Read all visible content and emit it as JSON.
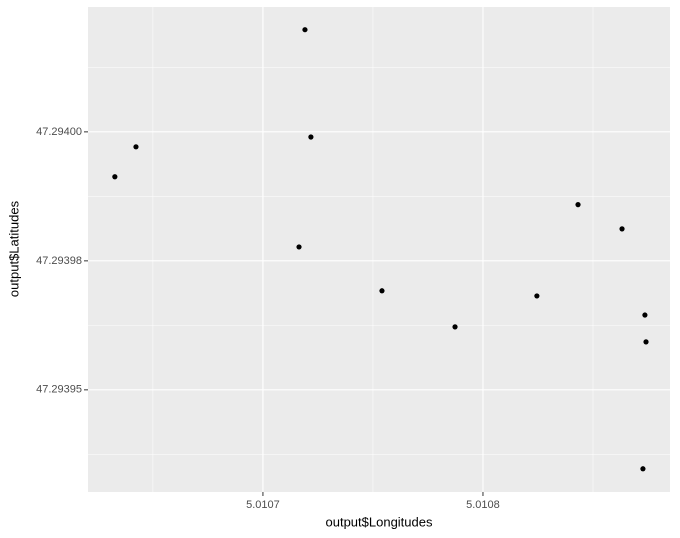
{
  "chart_data": {
    "type": "scatter",
    "x_label": "output$Longitudes",
    "y_label": "output$Latitudes",
    "x": [
      5.0107191,
      5.0106423,
      5.0106327,
      5.0107218,
      5.0107164,
      5.0107541,
      5.0107873,
      5.0108245,
      5.0108432,
      5.0108632,
      5.0108736,
      5.0108741,
      5.0108727
    ],
    "y": [
      47.2940198,
      47.2939971,
      47.2939913,
      47.293999,
      47.2939777,
      47.2939692,
      47.2939622,
      47.2939682,
      47.2939859,
      47.2939812,
      47.2939645,
      47.2939593,
      47.2939347
    ],
    "color": "#000000",
    "xlim": [
      5.0106205,
      5.010885
    ],
    "ylim": [
      47.2939302,
      47.2940242
    ],
    "xticks": [
      {
        "value": 5.0107,
        "label": "5.0107"
      },
      {
        "value": 5.0108,
        "label": "5.0108"
      }
    ],
    "yticks": [
      {
        "value": 47.29395,
        "label": "47.29395"
      },
      {
        "value": 47.293975,
        "label": "47.29398"
      },
      {
        "value": 47.294,
        "label": "47.29400"
      }
    ],
    "grid": true
  }
}
